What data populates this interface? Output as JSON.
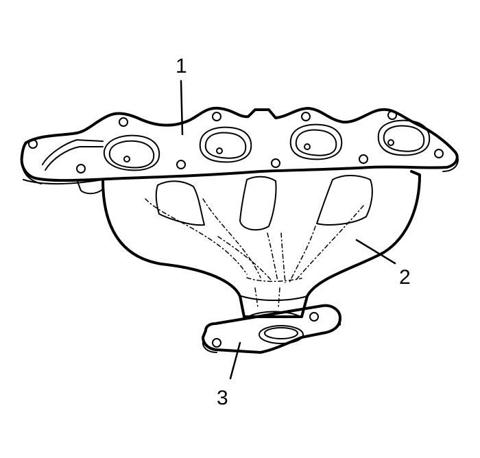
{
  "callouts": {
    "c1": "1",
    "c2": "2",
    "c3": "3"
  }
}
